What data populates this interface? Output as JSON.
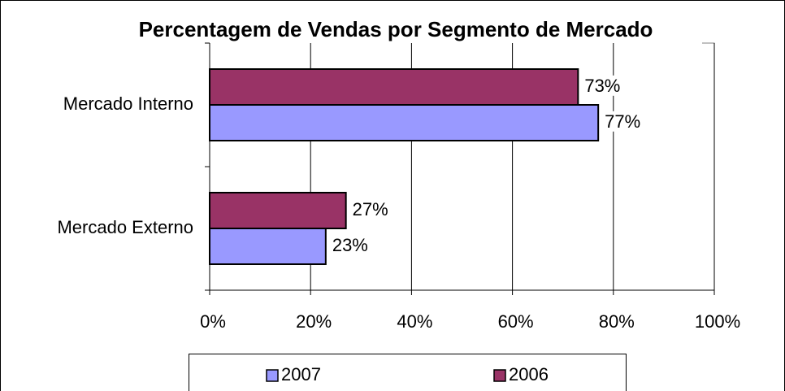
{
  "chart_data": {
    "type": "hbar",
    "title": "Percentagem de Vendas por Segmento de Mercado",
    "categories": [
      "Mercado Interno",
      "Mercado Externo"
    ],
    "series": [
      {
        "name": "2007",
        "color": "#9999ff",
        "values": [
          77,
          23
        ],
        "value_labels": [
          "77%",
          "23%"
        ]
      },
      {
        "name": "2006",
        "color": "#993366",
        "values": [
          73,
          27
        ],
        "value_labels": [
          "73%",
          "27%"
        ]
      }
    ],
    "xlim": [
      0,
      100
    ],
    "xticks": [
      {
        "value": 0,
        "label": "0%"
      },
      {
        "value": 20,
        "label": "20%"
      },
      {
        "value": 40,
        "label": "40%"
      },
      {
        "value": 60,
        "label": "60%"
      },
      {
        "value": 80,
        "label": "80%"
      },
      {
        "value": 100,
        "label": "100%"
      }
    ],
    "grid": true,
    "legend": "bottom"
  }
}
